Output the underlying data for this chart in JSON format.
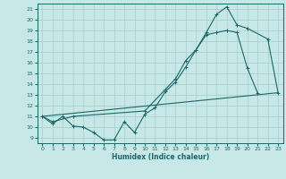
{
  "xlabel": "Humidex (Indice chaleur)",
  "xlim": [
    -0.5,
    23.5
  ],
  "ylim": [
    8.5,
    21.5
  ],
  "xticks": [
    0,
    1,
    2,
    3,
    4,
    5,
    6,
    7,
    8,
    9,
    10,
    11,
    12,
    13,
    14,
    15,
    16,
    17,
    18,
    19,
    20,
    21,
    22,
    23
  ],
  "yticks": [
    9,
    10,
    11,
    12,
    13,
    14,
    15,
    16,
    17,
    18,
    19,
    20,
    21
  ],
  "bg_color": "#c8e8e8",
  "grid_color": "#a8cece",
  "line_color": "#1a6868",
  "line1_x": [
    0,
    1,
    2,
    3,
    4,
    5,
    6,
    7,
    8,
    9,
    10,
    11,
    12,
    13,
    14,
    15,
    16,
    17,
    18,
    19,
    20,
    21
  ],
  "line1_y": [
    11.0,
    10.3,
    11.0,
    10.1,
    10.0,
    9.5,
    8.8,
    8.8,
    10.5,
    9.5,
    11.2,
    11.8,
    13.3,
    14.2,
    15.6,
    17.2,
    18.6,
    18.8,
    19.0,
    18.8,
    15.5,
    13.2
  ],
  "line2_x": [
    0,
    1,
    3,
    10,
    12,
    13,
    14,
    15,
    16,
    17,
    18,
    19,
    20,
    22,
    23
  ],
  "line2_y": [
    11.0,
    10.5,
    11.0,
    11.5,
    13.5,
    14.5,
    16.2,
    17.2,
    18.8,
    20.5,
    21.2,
    19.5,
    19.2,
    18.2,
    13.2
  ],
  "line3_x": [
    0,
    23
  ],
  "line3_y": [
    11.0,
    13.2
  ]
}
